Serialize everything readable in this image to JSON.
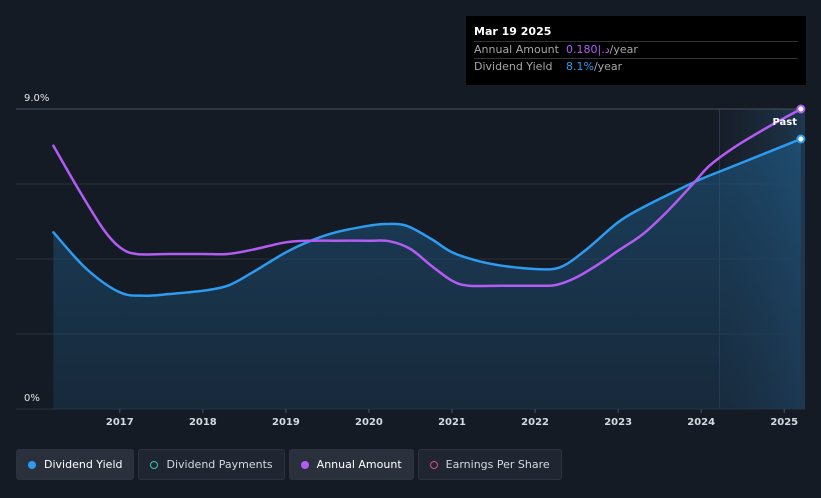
{
  "chart_data": {
    "type": "line",
    "y_axis": {
      "top_label": "9.0%",
      "bottom_label": "0%",
      "ylim": [
        0,
        9.0
      ],
      "unit": "%"
    },
    "x_axis": {
      "tick_labels": [
        "2017",
        "2018",
        "2019",
        "2020",
        "2021",
        "2022",
        "2023",
        "2024",
        "2025"
      ],
      "tick_years": [
        2017,
        2018,
        2019,
        2020,
        2021,
        2022,
        2023,
        2024,
        2025
      ],
      "range": [
        2015.75,
        2025.25
      ]
    },
    "past_label": "Past",
    "past_region_start": 2024.22,
    "series": [
      {
        "name": "Dividend Yield",
        "color": "#2d9bf0",
        "filled": true,
        "points": [
          [
            2016.2,
            5.3
          ],
          [
            2016.6,
            4.2
          ],
          [
            2017.0,
            3.5
          ],
          [
            2017.3,
            3.4
          ],
          [
            2017.6,
            3.45
          ],
          [
            2018.0,
            3.55
          ],
          [
            2018.3,
            3.7
          ],
          [
            2018.6,
            4.1
          ],
          [
            2019.0,
            4.7
          ],
          [
            2019.3,
            5.05
          ],
          [
            2019.6,
            5.3
          ],
          [
            2020.0,
            5.5
          ],
          [
            2020.2,
            5.55
          ],
          [
            2020.45,
            5.5
          ],
          [
            2020.75,
            5.1
          ],
          [
            2021.0,
            4.7
          ],
          [
            2021.3,
            4.45
          ],
          [
            2021.6,
            4.3
          ],
          [
            2022.0,
            4.2
          ],
          [
            2022.3,
            4.25
          ],
          [
            2022.6,
            4.75
          ],
          [
            2023.0,
            5.6
          ],
          [
            2023.3,
            6.05
          ],
          [
            2023.7,
            6.55
          ],
          [
            2024.0,
            6.9
          ],
          [
            2024.3,
            7.2
          ],
          [
            2024.7,
            7.6
          ],
          [
            2025.0,
            7.9
          ],
          [
            2025.2,
            8.1
          ]
        ]
      },
      {
        "name": "Annual Amount",
        "color": "#b25cf3",
        "filled": false,
        "points": [
          [
            2016.2,
            7.9
          ],
          [
            2016.5,
            6.6
          ],
          [
            2016.8,
            5.4
          ],
          [
            2017.0,
            4.85
          ],
          [
            2017.2,
            4.65
          ],
          [
            2017.6,
            4.65
          ],
          [
            2018.0,
            4.65
          ],
          [
            2018.3,
            4.65
          ],
          [
            2018.6,
            4.78
          ],
          [
            2019.0,
            5.0
          ],
          [
            2019.3,
            5.05
          ],
          [
            2019.6,
            5.05
          ],
          [
            2020.0,
            5.05
          ],
          [
            2020.25,
            5.03
          ],
          [
            2020.5,
            4.8
          ],
          [
            2020.75,
            4.3
          ],
          [
            2021.0,
            3.85
          ],
          [
            2021.2,
            3.7
          ],
          [
            2021.6,
            3.7
          ],
          [
            2022.0,
            3.7
          ],
          [
            2022.25,
            3.72
          ],
          [
            2022.5,
            3.95
          ],
          [
            2022.8,
            4.4
          ],
          [
            2023.0,
            4.75
          ],
          [
            2023.3,
            5.25
          ],
          [
            2023.6,
            5.95
          ],
          [
            2023.9,
            6.75
          ],
          [
            2024.1,
            7.3
          ],
          [
            2024.4,
            7.85
          ],
          [
            2024.8,
            8.45
          ],
          [
            2025.2,
            9.0
          ]
        ]
      }
    ]
  },
  "tooltip": {
    "date": "Mar 19 2025",
    "rows": [
      {
        "label": "Annual Amount",
        "value": "0.180|.د",
        "unit": "/year"
      },
      {
        "label": "Dividend Yield",
        "value": "8.1%",
        "unit": "/year"
      }
    ]
  },
  "legend": [
    {
      "label": "Dividend Yield",
      "color": "#2d9bf0",
      "filled": true,
      "active": true
    },
    {
      "label": "Dividend Payments",
      "color": "#38c6c0",
      "filled": false,
      "active": false
    },
    {
      "label": "Annual Amount",
      "color": "#b25cf3",
      "filled": true,
      "active": true
    },
    {
      "label": "Earnings Per Share",
      "color": "#d64f8e",
      "filled": false,
      "active": false
    }
  ]
}
